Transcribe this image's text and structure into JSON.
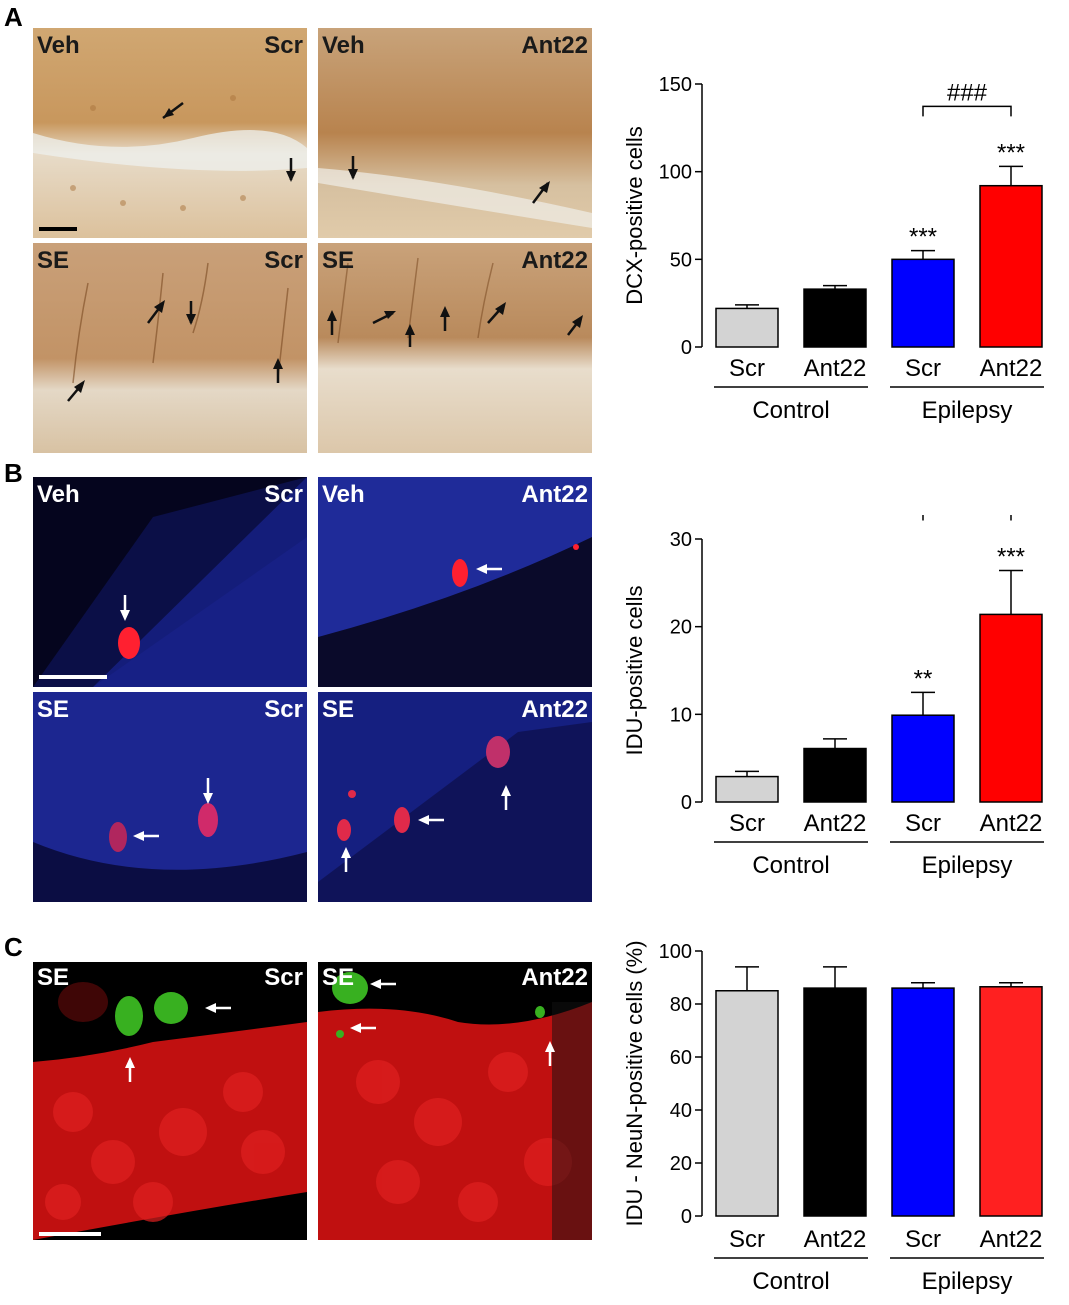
{
  "panels": {
    "a": {
      "letter": "A",
      "images": [
        {
          "left": "Veh",
          "right": "Scr"
        },
        {
          "left": "Veh",
          "right": "Ant22"
        },
        {
          "left": "SE",
          "right": "Scr"
        },
        {
          "left": "SE",
          "right": "Ant22"
        }
      ]
    },
    "b": {
      "letter": "B",
      "images": [
        {
          "left": "Veh",
          "right": "Scr"
        },
        {
          "left": "Veh",
          "right": "Ant22"
        },
        {
          "left": "SE",
          "right": "Scr"
        },
        {
          "left": "SE",
          "right": "Ant22"
        }
      ]
    },
    "c": {
      "letter": "C",
      "images": [
        {
          "left": "SE",
          "right": "Scr"
        },
        {
          "left": "SE",
          "right": "Ant22"
        }
      ]
    }
  },
  "chart_data": [
    {
      "type": "bar",
      "ylabel": "DCX-positive cells",
      "ylim": [
        0,
        150
      ],
      "yticks": [
        0,
        50,
        100,
        150
      ],
      "categories": [
        "Scr",
        "Ant22",
        "Scr",
        "Ant22"
      ],
      "groups": [
        "Control",
        "Epilepsy"
      ],
      "values": [
        22,
        33,
        50,
        92
      ],
      "errors": [
        2,
        2,
        5,
        11
      ],
      "colors": [
        "#d3d3d3",
        "#000000",
        "#0000ff",
        "#ff0000"
      ],
      "significance": [
        "",
        "",
        "***",
        "***"
      ],
      "bracket": {
        "from": 2,
        "to": 3,
        "label": "###"
      }
    },
    {
      "type": "bar",
      "ylabel": "IDU-positive cells",
      "ylim": [
        0,
        30
      ],
      "yticks": [
        0,
        10,
        20,
        30
      ],
      "categories": [
        "Scr",
        "Ant22",
        "Scr",
        "Ant22"
      ],
      "groups": [
        "Control",
        "Epilepsy"
      ],
      "values": [
        2.9,
        6.1,
        9.9,
        21.4
      ],
      "errors": [
        0.6,
        1.1,
        2.6,
        5.0
      ],
      "colors": [
        "#d3d3d3",
        "#000000",
        "#0000ff",
        "#ff0000"
      ],
      "significance": [
        "",
        "",
        "**",
        "***"
      ],
      "bracket": {
        "from": 2,
        "to": 3,
        "label": "#"
      }
    },
    {
      "type": "bar",
      "ylabel": "IDU - NeuN-positive cells (%)",
      "ylim": [
        0,
        100
      ],
      "yticks": [
        0,
        20,
        40,
        60,
        80,
        100
      ],
      "categories": [
        "Scr",
        "Ant22",
        "Scr",
        "Ant22"
      ],
      "groups": [
        "Control",
        "Epilepsy"
      ],
      "values": [
        85,
        86,
        86,
        86.5
      ],
      "errors": [
        9,
        8,
        2,
        1.5
      ],
      "colors": [
        "#d3d3d3",
        "#000000",
        "#0000ff",
        "#ff2020"
      ],
      "significance": [
        "",
        "",
        "",
        ""
      ],
      "bracket": null
    }
  ]
}
